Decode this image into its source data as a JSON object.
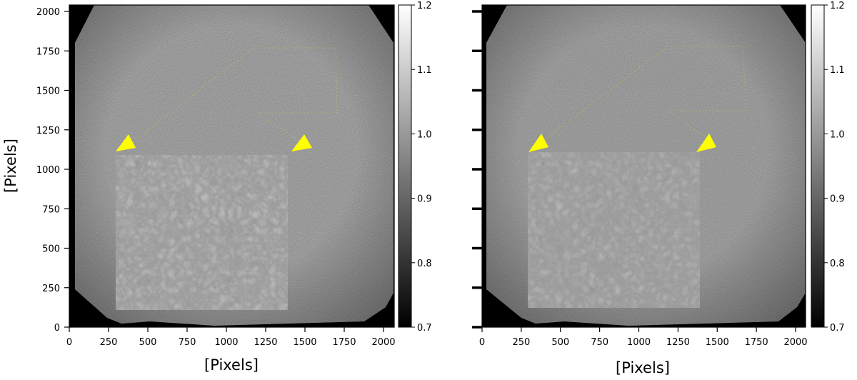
{
  "panels": [
    {
      "name": "left-panel",
      "xlabel": "[Pixels]",
      "ylabel": "[Pixels]",
      "x_ticks": [
        "0",
        "250",
        "500",
        "750",
        "1000",
        "1250",
        "1500",
        "1750",
        "2000"
      ],
      "y_ticks": [
        "0",
        "250",
        "500",
        "750",
        "1000",
        "1250",
        "1500",
        "1750",
        "2000"
      ],
      "y_tick_labels_shown": true,
      "colorbar_ticks": [
        "0.7",
        "0.8",
        "0.9",
        "1.0",
        "1.1",
        "1.2"
      ]
    },
    {
      "name": "right-panel",
      "xlabel": "[Pixels]",
      "ylabel": "",
      "x_ticks": [
        "0",
        "250",
        "500",
        "750",
        "1000",
        "1250",
        "1500",
        "1750",
        "2000"
      ],
      "y_ticks": [
        "",
        "",
        "",
        "",
        "",
        "",
        "",
        "",
        ""
      ],
      "y_tick_labels_shown": false,
      "colorbar_ticks": [
        "0.7",
        "0.8",
        "0.9",
        "1.0",
        "1.1",
        "1.2"
      ]
    }
  ],
  "colors": {
    "arrow": "#ffff00",
    "background": "#000000",
    "image_mid_gray": "#8a8a8a"
  }
}
